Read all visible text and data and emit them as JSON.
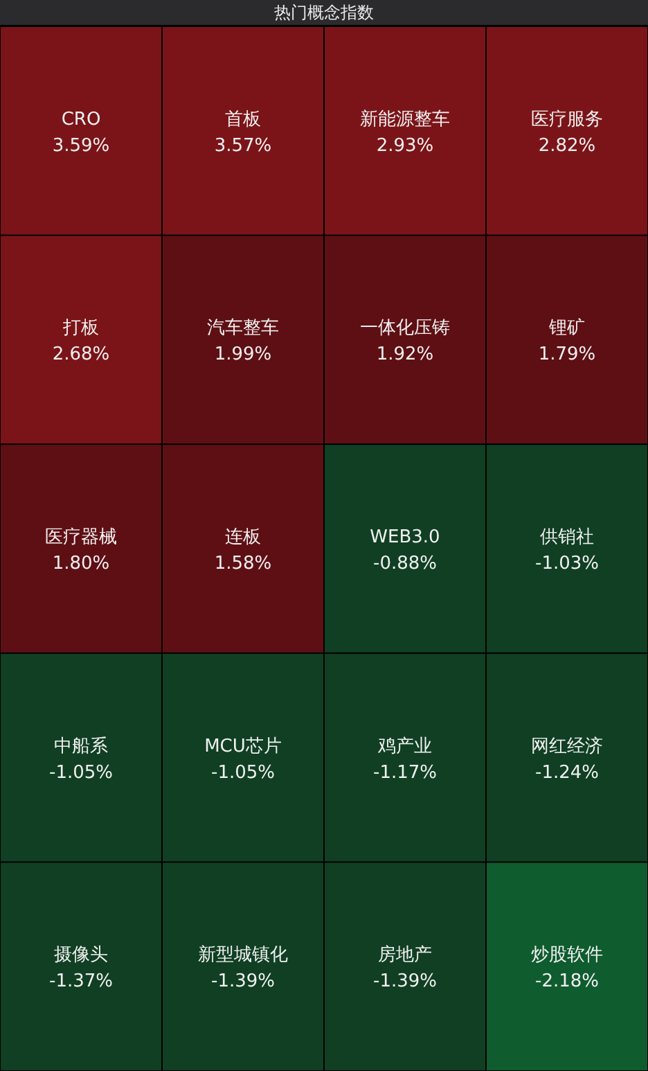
{
  "chart_data": {
    "type": "other",
    "title": "热门概念指数",
    "categories": [
      "CRO",
      "首板",
      "新能源整车",
      "医疗服务",
      "打板",
      "汽车整车",
      "一体化压铸",
      "锂矿",
      "医疗器械",
      "连板",
      "WEB3.0",
      "供销社",
      "中船系",
      "MCU芯片",
      "鸡产业",
      "网红经济",
      "摄像头",
      "新型城镇化",
      "房地产",
      "炒股软件"
    ],
    "values": [
      3.59,
      3.57,
      2.93,
      2.82,
      2.68,
      1.99,
      1.92,
      1.79,
      1.8,
      1.58,
      -0.88,
      -1.03,
      -1.05,
      -1.05,
      -1.17,
      -1.24,
      -1.37,
      -1.39,
      -1.39,
      -2.18
    ],
    "value_labels": [
      "3.59%",
      "3.57%",
      "2.93%",
      "2.82%",
      "2.68%",
      "1.99%",
      "1.92%",
      "1.79%",
      "1.80%",
      "1.58%",
      "-0.88%",
      "-1.03%",
      "-1.05%",
      "-1.05%",
      "-1.17%",
      "-1.24%",
      "-1.37%",
      "-1.39%",
      "-1.39%",
      "-2.18%"
    ]
  }
}
